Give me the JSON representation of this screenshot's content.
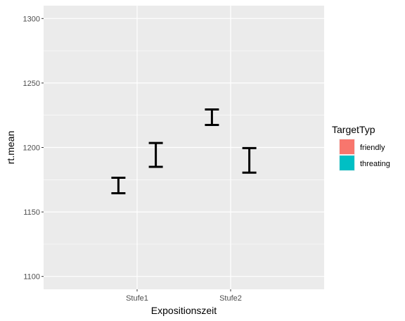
{
  "chart_data": {
    "type": "errorbar",
    "categories": [
      "Stufe1",
      "Stufe2"
    ],
    "series": [
      {
        "name": "friendly",
        "color": "#F8766D",
        "intervals": [
          [
            1164.5,
            1176.5
          ],
          [
            1217.5,
            1229.5
          ]
        ]
      },
      {
        "name": "threating",
        "color": "#00BFC4",
        "intervals": [
          [
            1185,
            1203.5
          ],
          [
            1180.5,
            1199.5
          ]
        ]
      }
    ],
    "xlabel": "Expositionszeit",
    "ylabel": "rt.mean",
    "ylim": [
      1090,
      1310
    ],
    "yticks": [
      1100,
      1150,
      1200,
      1250,
      1300
    ],
    "grid": true,
    "legend": {
      "title": "TargetTyp",
      "position": "right"
    }
  }
}
